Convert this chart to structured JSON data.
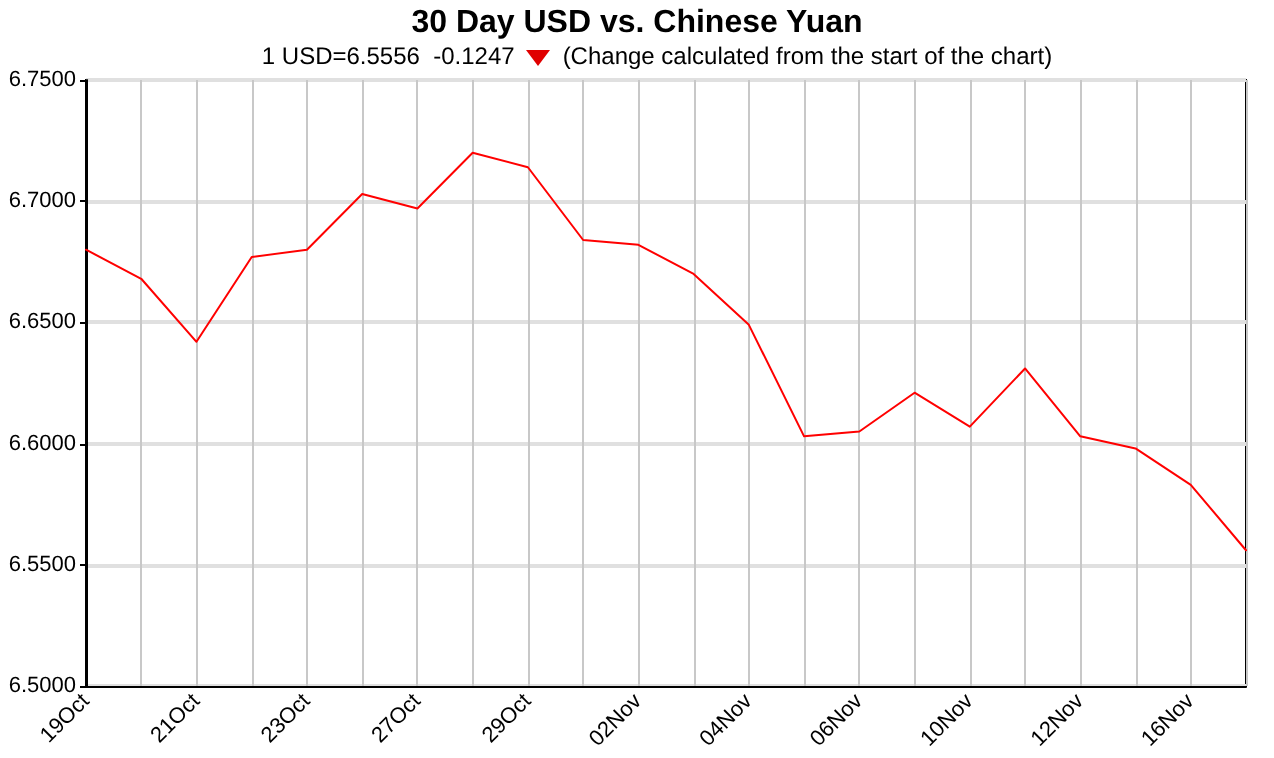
{
  "chart_data": {
    "type": "line",
    "title": "30 Day USD vs. Chinese Yuan",
    "subtitle": "1 USD=6.5556  -0.1247",
    "annotations": [
      "(Change calculated from the start of the chart)"
    ],
    "categories": [
      "19Oct",
      null,
      "21Oct",
      null,
      "23Oct",
      null,
      "27Oct",
      null,
      "29Oct",
      null,
      "02Nov",
      null,
      "04Nov",
      null,
      "06Nov",
      null,
      "10Nov",
      null,
      "12Nov",
      null,
      "16Nov",
      null
    ],
    "series": [
      {
        "color": "#ff0000",
        "values": [
          6.68,
          6.668,
          6.642,
          6.677,
          6.68,
          6.703,
          6.697,
          6.72,
          6.714,
          6.684,
          6.682,
          6.67,
          6.649,
          6.603,
          6.605,
          6.621,
          6.607,
          6.631,
          6.603,
          6.598,
          6.583,
          6.556
        ]
      }
    ],
    "ylim": [
      6.5,
      6.75
    ],
    "yticks": [
      {
        "value": 6.5,
        "label": "6.5000"
      },
      {
        "value": 6.55,
        "label": "6.5500"
      },
      {
        "value": 6.6,
        "label": "6.6000"
      },
      {
        "value": 6.65,
        "label": "6.6500"
      },
      {
        "value": 6.7,
        "label": "6.7000"
      },
      {
        "value": 6.75,
        "label": "6.7500"
      }
    ],
    "grid": true,
    "marker": "none",
    "line_style": "solid"
  }
}
